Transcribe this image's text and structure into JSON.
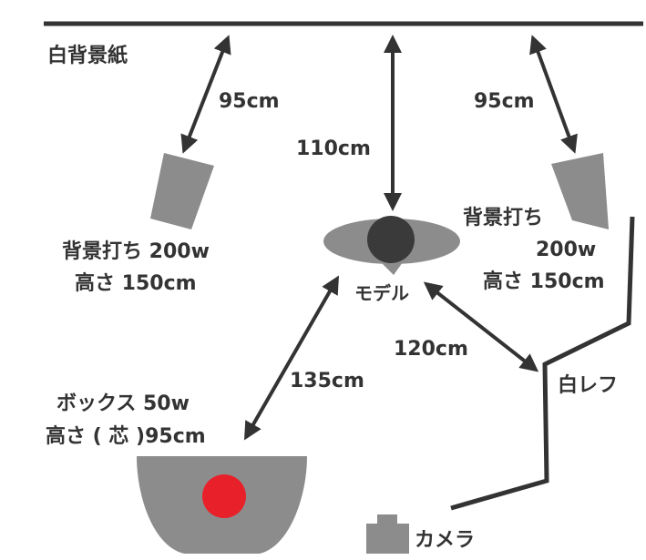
{
  "title": "白背景紙",
  "labels": {
    "model": "モデル",
    "white_reflector": "白レフ",
    "camera": "カメラ"
  },
  "lights": {
    "bg_left": {
      "name": "背景打ち 200w",
      "height": "高さ 150cm"
    },
    "bg_right": {
      "name_line1": "背景打ち",
      "name_line2": "200w",
      "height": "高さ 150cm"
    },
    "box": {
      "name": "ボックス 50w",
      "height": "高さ ( 芯 )95cm"
    }
  },
  "distances": {
    "left_to_backdrop": "95cm",
    "model_to_backdrop": "110cm",
    "right_to_backdrop": "95cm",
    "model_to_camera": "120cm",
    "box_to_model": "135cm"
  },
  "colors": {
    "line": "#333333",
    "light": "#8c8c8c",
    "model_head": "#3a3a3a",
    "box_lamp": "#e8202a",
    "text": "#333333"
  }
}
